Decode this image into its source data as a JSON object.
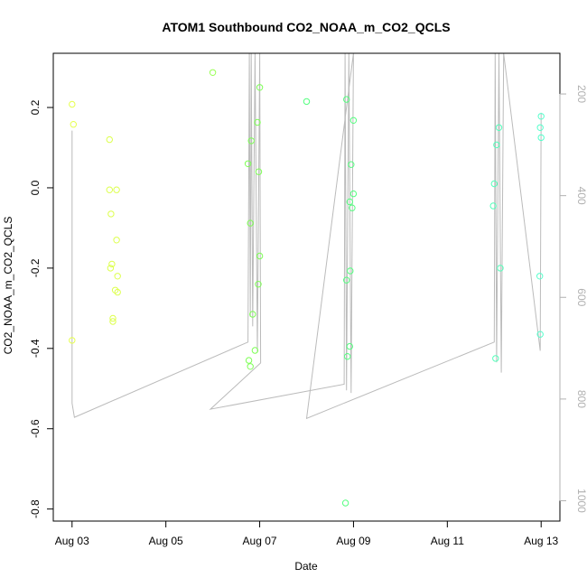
{
  "chart_data": {
    "type": "scatter",
    "title": "ATOM1 Southbound CO2_NOAA_m_CO2_QCLS",
    "xlabel": "Date",
    "ylabel": "CO2_NOAA_m_CO2_QCLS",
    "x_unit": "days since Aug 03",
    "xlim": [
      -0.4,
      10.4
    ],
    "ylim": [
      -0.83,
      0.335
    ],
    "x_ticks": [
      {
        "value": 0,
        "label": "Aug 03"
      },
      {
        "value": 2,
        "label": "Aug 05"
      },
      {
        "value": 4,
        "label": "Aug 07"
      },
      {
        "value": 6,
        "label": "Aug 09"
      },
      {
        "value": 8,
        "label": "Aug 11"
      },
      {
        "value": 10,
        "label": "Aug 13"
      }
    ],
    "y_ticks": [
      {
        "value": 0.2,
        "label": "0.2"
      },
      {
        "value": 0.0,
        "label": "0.0"
      },
      {
        "value": -0.2,
        "label": "-0.2"
      },
      {
        "value": -0.4,
        "label": "-0.4"
      },
      {
        "value": -0.6,
        "label": "-0.6"
      },
      {
        "value": -0.8,
        "label": "-0.8"
      }
    ],
    "secondary_axis": {
      "label_color": "#b0b0b0",
      "lim": [
        1040,
        120
      ],
      "ticks": [
        {
          "value": 200,
          "label": "200"
        },
        {
          "value": 400,
          "label": "400"
        },
        {
          "value": 600,
          "label": "600"
        },
        {
          "value": 800,
          "label": "800"
        },
        {
          "value": 1000,
          "label": "1000"
        }
      ]
    },
    "points": [
      {
        "x": 0.0,
        "y": 0.208,
        "color": "#e6ff4d"
      },
      {
        "x": 0.03,
        "y": 0.158,
        "color": "#e6ff4d"
      },
      {
        "x": 0.0,
        "y": -0.38,
        "color": "#e6ff4d"
      },
      {
        "x": 0.8,
        "y": 0.12,
        "color": "#ddff4d"
      },
      {
        "x": 0.8,
        "y": -0.005,
        "color": "#ddff4d"
      },
      {
        "x": 0.83,
        "y": -0.065,
        "color": "#ddff4d"
      },
      {
        "x": 0.95,
        "y": -0.005,
        "color": "#ddff4d"
      },
      {
        "x": 0.95,
        "y": -0.13,
        "color": "#ddff4d"
      },
      {
        "x": 0.85,
        "y": -0.19,
        "color": "#ddff4d"
      },
      {
        "x": 0.82,
        "y": -0.2,
        "color": "#ddff4d"
      },
      {
        "x": 0.97,
        "y": -0.22,
        "color": "#ddff4d"
      },
      {
        "x": 0.92,
        "y": -0.255,
        "color": "#ddff4d"
      },
      {
        "x": 0.97,
        "y": -0.26,
        "color": "#ddff4d"
      },
      {
        "x": 0.87,
        "y": -0.325,
        "color": "#ddff4d"
      },
      {
        "x": 0.87,
        "y": -0.333,
        "color": "#ddff4d"
      },
      {
        "x": 3.0,
        "y": 0.287,
        "color": "#99ff55"
      },
      {
        "x": 4.0,
        "y": 0.25,
        "color": "#7dff55"
      },
      {
        "x": 3.95,
        "y": 0.163,
        "color": "#7dff55"
      },
      {
        "x": 3.82,
        "y": 0.117,
        "color": "#7dff55"
      },
      {
        "x": 3.75,
        "y": 0.06,
        "color": "#7dff55"
      },
      {
        "x": 3.98,
        "y": 0.04,
        "color": "#7dff55"
      },
      {
        "x": 3.8,
        "y": -0.088,
        "color": "#7dff55"
      },
      {
        "x": 4.0,
        "y": -0.17,
        "color": "#7dff55"
      },
      {
        "x": 3.97,
        "y": -0.24,
        "color": "#7dff55"
      },
      {
        "x": 3.85,
        "y": -0.315,
        "color": "#7dff55"
      },
      {
        "x": 3.9,
        "y": -0.405,
        "color": "#7dff55"
      },
      {
        "x": 3.77,
        "y": -0.43,
        "color": "#7dff55"
      },
      {
        "x": 3.8,
        "y": -0.445,
        "color": "#7dff55"
      },
      {
        "x": 5.0,
        "y": 0.215,
        "color": "#55ff80"
      },
      {
        "x": 5.85,
        "y": 0.22,
        "color": "#55ff80"
      },
      {
        "x": 6.0,
        "y": 0.168,
        "color": "#55ff80"
      },
      {
        "x": 5.95,
        "y": 0.058,
        "color": "#55ff80"
      },
      {
        "x": 6.0,
        "y": -0.015,
        "color": "#55ff80"
      },
      {
        "x": 5.92,
        "y": -0.035,
        "color": "#55ff80"
      },
      {
        "x": 5.97,
        "y": -0.05,
        "color": "#55ff80"
      },
      {
        "x": 5.93,
        "y": -0.207,
        "color": "#55ff80"
      },
      {
        "x": 5.85,
        "y": -0.23,
        "color": "#55ff80"
      },
      {
        "x": 5.92,
        "y": -0.395,
        "color": "#55ff80"
      },
      {
        "x": 5.87,
        "y": -0.42,
        "color": "#55ff80"
      },
      {
        "x": 5.83,
        "y": -0.785,
        "color": "#55ff80"
      },
      {
        "x": 9.1,
        "y": 0.15,
        "color": "#55ffbb"
      },
      {
        "x": 9.05,
        "y": 0.107,
        "color": "#55ffbb"
      },
      {
        "x": 9.0,
        "y": 0.01,
        "color": "#55ffbb"
      },
      {
        "x": 8.98,
        "y": -0.045,
        "color": "#55ffbb"
      },
      {
        "x": 9.13,
        "y": -0.2,
        "color": "#55ffbb"
      },
      {
        "x": 9.03,
        "y": -0.425,
        "color": "#55ffbb"
      },
      {
        "x": 10.0,
        "y": 0.178,
        "color": "#55ffcc"
      },
      {
        "x": 9.98,
        "y": 0.15,
        "color": "#55ffcc"
      },
      {
        "x": 10.0,
        "y": 0.125,
        "color": "#55ffcc"
      },
      {
        "x": 9.97,
        "y": -0.22,
        "color": "#55ffcc"
      },
      {
        "x": 9.98,
        "y": -0.365,
        "color": "#55ffcc"
      }
    ],
    "altitude_track": {
      "color": "#bbbbbb",
      "points": [
        [
          0.0,
          272
        ],
        [
          0.0,
          808
        ],
        [
          0.05,
          836
        ],
        [
          3.75,
          688
        ],
        [
          3.78,
          120
        ],
        [
          3.8,
          638
        ],
        [
          3.82,
          120
        ],
        [
          3.85,
          657
        ],
        [
          3.9,
          120
        ],
        [
          3.95,
          708
        ],
        [
          4.0,
          120
        ],
        [
          4.02,
          729
        ],
        [
          2.95,
          820
        ],
        [
          5.8,
          771
        ],
        [
          5.82,
          120
        ],
        [
          5.85,
          783
        ],
        [
          5.9,
          120
        ],
        [
          5.95,
          788
        ],
        [
          6.0,
          120
        ],
        [
          5.0,
          838
        ],
        [
          9.0,
          688
        ],
        [
          9.02,
          120
        ],
        [
          9.05,
          728
        ],
        [
          9.1,
          120
        ],
        [
          9.15,
          748
        ],
        [
          9.2,
          120
        ],
        [
          9.98,
          705
        ],
        [
          10.0,
          237
        ]
      ]
    }
  }
}
